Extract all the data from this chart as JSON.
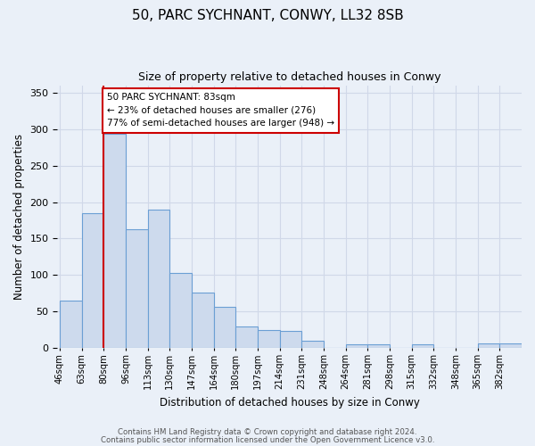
{
  "title": "50, PARC SYCHNANT, CONWY, LL32 8SB",
  "subtitle": "Size of property relative to detached houses in Conwy",
  "xlabel": "Distribution of detached houses by size in Conwy",
  "ylabel": "Number of detached properties",
  "bar_color": "#cddaed",
  "bar_edge_color": "#6b9fd4",
  "background_color": "#eaf0f8",
  "grid_color": "#d0d8e8",
  "bin_labels": [
    "46sqm",
    "63sqm",
    "80sqm",
    "96sqm",
    "113sqm",
    "130sqm",
    "147sqm",
    "164sqm",
    "180sqm",
    "197sqm",
    "214sqm",
    "231sqm",
    "248sqm",
    "264sqm",
    "281sqm",
    "298sqm",
    "315sqm",
    "332sqm",
    "348sqm",
    "365sqm",
    "382sqm"
  ],
  "bar_heights": [
    65,
    185,
    293,
    163,
    190,
    103,
    76,
    56,
    30,
    25,
    23,
    10,
    0,
    5,
    5,
    0,
    5,
    0,
    0,
    6,
    7
  ],
  "ylim": [
    0,
    360
  ],
  "yticks": [
    0,
    50,
    100,
    150,
    200,
    250,
    300,
    350
  ],
  "annotation_title": "50 PARC SYCHNANT: 83sqm",
  "annotation_line1": "← 23% of detached houses are smaller (276)",
  "annotation_line2": "77% of semi-detached houses are larger (948) →",
  "red_line_bar_index": 2,
  "footer_line1": "Contains HM Land Registry data © Crown copyright and database right 2024.",
  "footer_line2": "Contains public sector information licensed under the Open Government Licence v3.0."
}
